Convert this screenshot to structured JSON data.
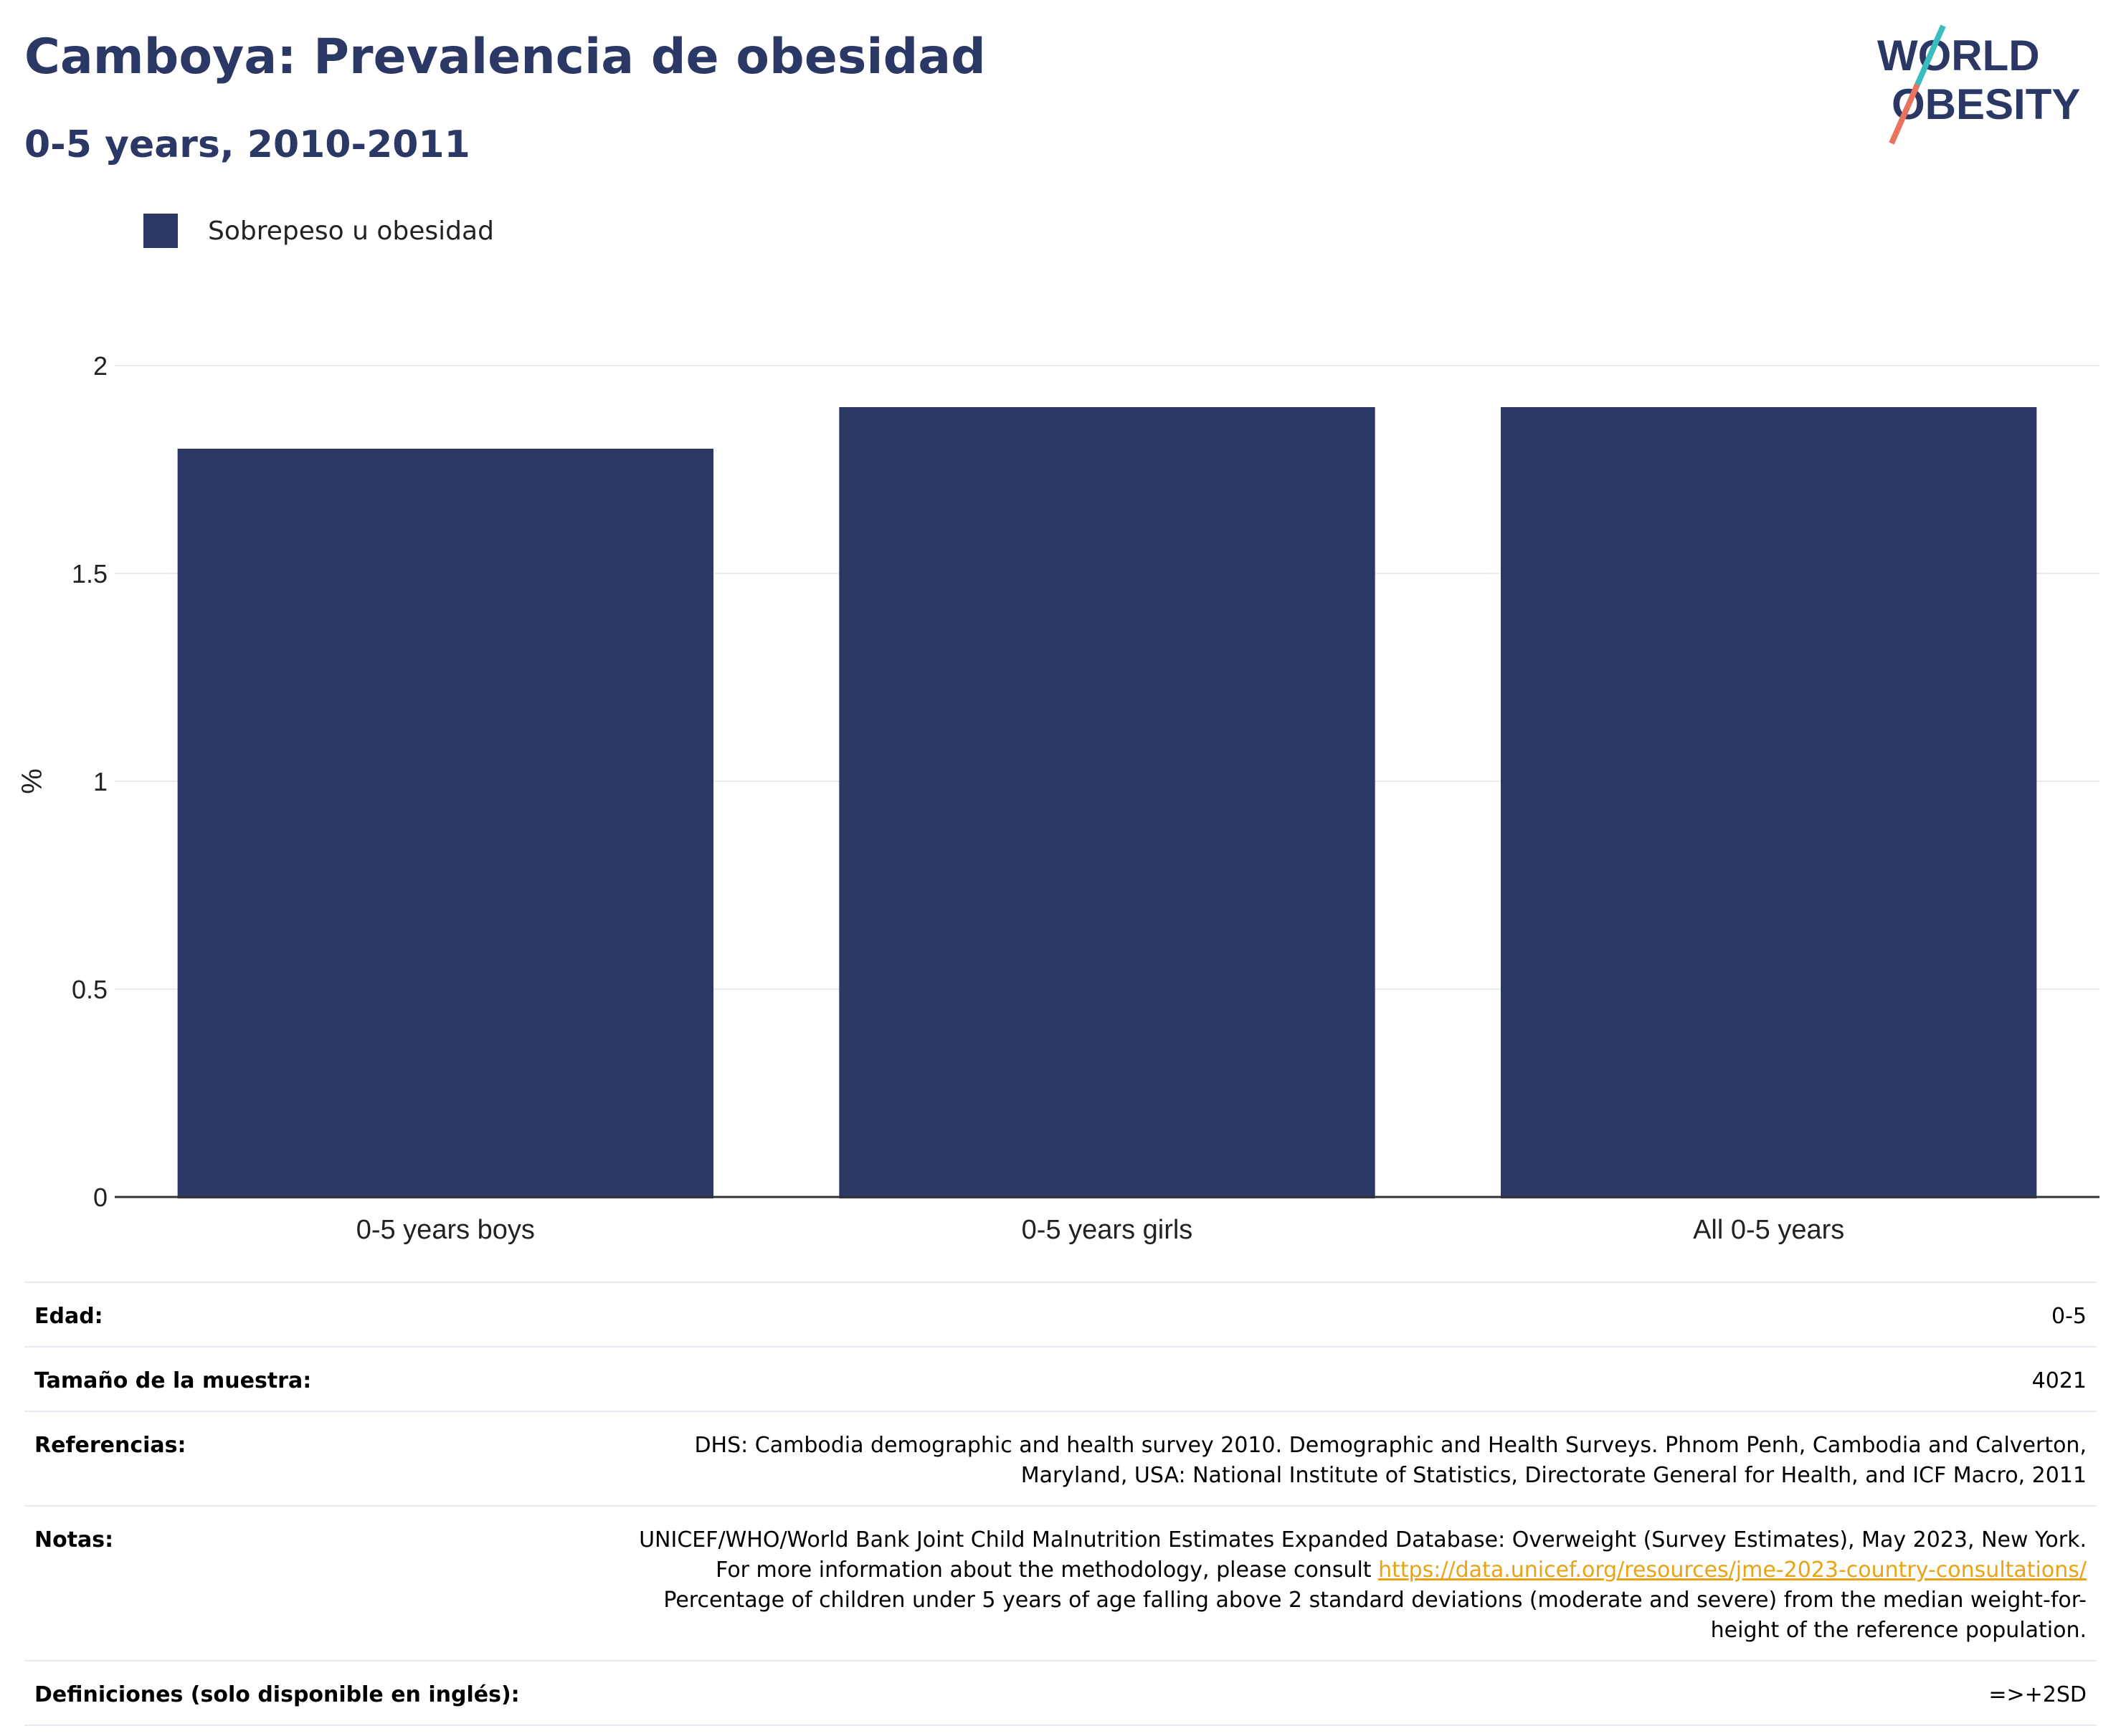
{
  "header": {
    "title": "Camboya: Prevalencia de obesidad",
    "subtitle": "0-5 years, 2010-2011"
  },
  "logo": {
    "line1": "WORLD",
    "line2": "OBESITY"
  },
  "legend": {
    "label": "Sobrepeso u obesidad",
    "color": "#2b3865"
  },
  "chart_data": {
    "type": "bar",
    "categories": [
      "0-5 years boys",
      "0-5 years girls",
      "All 0-5 years"
    ],
    "series": [
      {
        "name": "Sobrepeso u obesidad",
        "values": [
          1.8,
          1.9,
          1.9
        ]
      }
    ],
    "ylabel": "%",
    "ylim": [
      0,
      2
    ],
    "yticks": [
      "0",
      "0.5",
      "1",
      "1.5",
      "2"
    ],
    "grid": true,
    "bar_color": "#2b3865",
    "legend_position": "top-left"
  },
  "meta": {
    "age_label": "Edad:",
    "age_value": "0-5",
    "sample_label": "Tamaño de la muestra:",
    "sample_value": "4021",
    "references_label": "Referencias:",
    "references_value": "DHS: Cambodia demographic and health survey 2010. Demographic and Health Surveys. Phnom Penh, Cambodia and Calverton, Maryland, USA: National Institute of Statistics, Directorate General for Health, and ICF Macro, 2011",
    "notes_label": "Notas:",
    "notes_text1": "UNICEF/WHO/World Bank Joint Child Malnutrition Estimates Expanded Database: Overweight (Survey Estimates), May 2023, New York. For more information about the methodology, please consult ",
    "notes_link": "https://data.unicef.org/resources/jme-2023-country-consultations/",
    "notes_text2": " Percentage of children under 5 years of age falling above 2 standard deviations (moderate and severe) from the median weight-for-height of the reference population.",
    "definitions_label": "Definiciones (solo disponible en inglés):",
    "definitions_value": "=>+2SD"
  }
}
